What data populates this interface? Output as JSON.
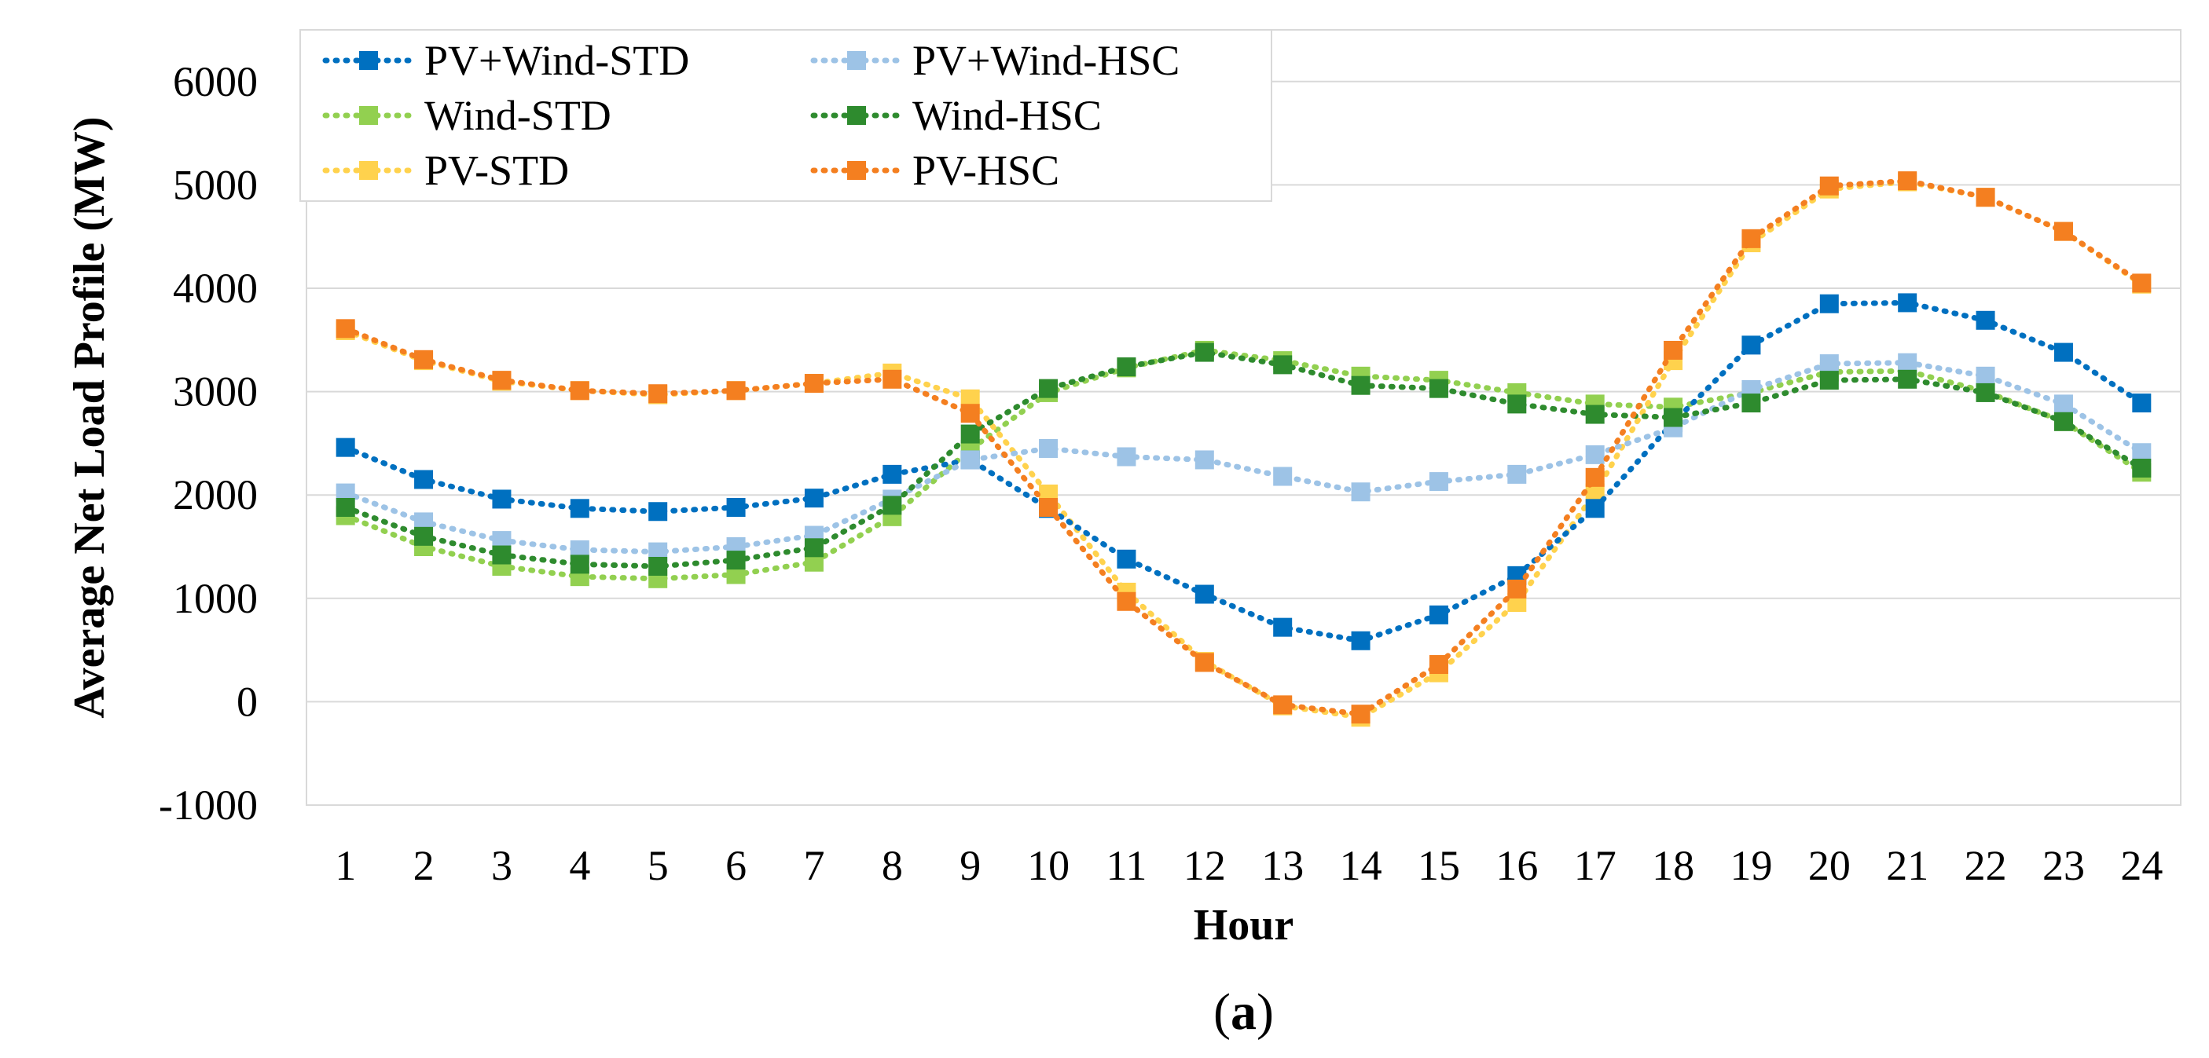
{
  "chart_data": {
    "type": "line",
    "xlabel": "Hour",
    "ylabel": "Average Net Load Profile (MW)",
    "caption_prefix": "(",
    "caption_letter": "a",
    "caption_suffix": ")",
    "ylim": [
      -1000,
      6500
    ],
    "yticks": [
      -1000,
      0,
      1000,
      2000,
      3000,
      4000,
      5000,
      6000
    ],
    "grid": "horizontal",
    "legend_position": "top-left",
    "x": [
      1,
      2,
      3,
      4,
      5,
      6,
      7,
      8,
      9,
      10,
      11,
      12,
      13,
      14,
      15,
      16,
      17,
      18,
      19,
      20,
      21,
      22,
      23,
      24
    ],
    "series": [
      {
        "name": "PV+Wind-STD",
        "color": "#0070C0",
        "values": [
          2460,
          2150,
          1960,
          1870,
          1840,
          1880,
          1970,
          2200,
          2340,
          1870,
          1380,
          1040,
          720,
          590,
          840,
          1220,
          1870,
          2700,
          3450,
          3850,
          3860,
          3690,
          3380,
          2890
        ]
      },
      {
        "name": "Wind-STD",
        "color": "#92D050",
        "values": [
          1800,
          1500,
          1310,
          1210,
          1190,
          1230,
          1350,
          1790,
          2440,
          2990,
          3230,
          3400,
          3300,
          3150,
          3110,
          2990,
          2880,
          2850,
          2990,
          3190,
          3200,
          3000,
          2710,
          2220
        ]
      },
      {
        "name": "PV-STD",
        "color": "#FFD24D",
        "values": [
          3590,
          3300,
          3100,
          3010,
          2970,
          3010,
          3080,
          3180,
          2930,
          2010,
          1060,
          390,
          -40,
          -150,
          280,
          960,
          2020,
          3300,
          4440,
          4960,
          5030,
          4880,
          4550,
          4040
        ]
      },
      {
        "name": "PV+Wind-HSC",
        "color": "#9DC3E6",
        "values": [
          2020,
          1740,
          1560,
          1470,
          1450,
          1500,
          1610,
          1960,
          2340,
          2450,
          2370,
          2340,
          2180,
          2030,
          2130,
          2200,
          2390,
          2650,
          3020,
          3270,
          3280,
          3150,
          2880,
          2410
        ]
      },
      {
        "name": "Wind-HSC",
        "color": "#2E8B2E",
        "values": [
          1880,
          1600,
          1420,
          1330,
          1310,
          1370,
          1490,
          1900,
          2590,
          3030,
          3240,
          3380,
          3260,
          3060,
          3030,
          2880,
          2780,
          2750,
          2890,
          3110,
          3120,
          2990,
          2710,
          2260
        ]
      },
      {
        "name": "PV-HSC",
        "color": "#F47F20",
        "values": [
          3610,
          3310,
          3110,
          3010,
          2980,
          3010,
          3080,
          3120,
          2790,
          1880,
          970,
          380,
          -30,
          -120,
          360,
          1090,
          2170,
          3400,
          4480,
          4990,
          5040,
          4880,
          4550,
          4050
        ]
      }
    ]
  }
}
